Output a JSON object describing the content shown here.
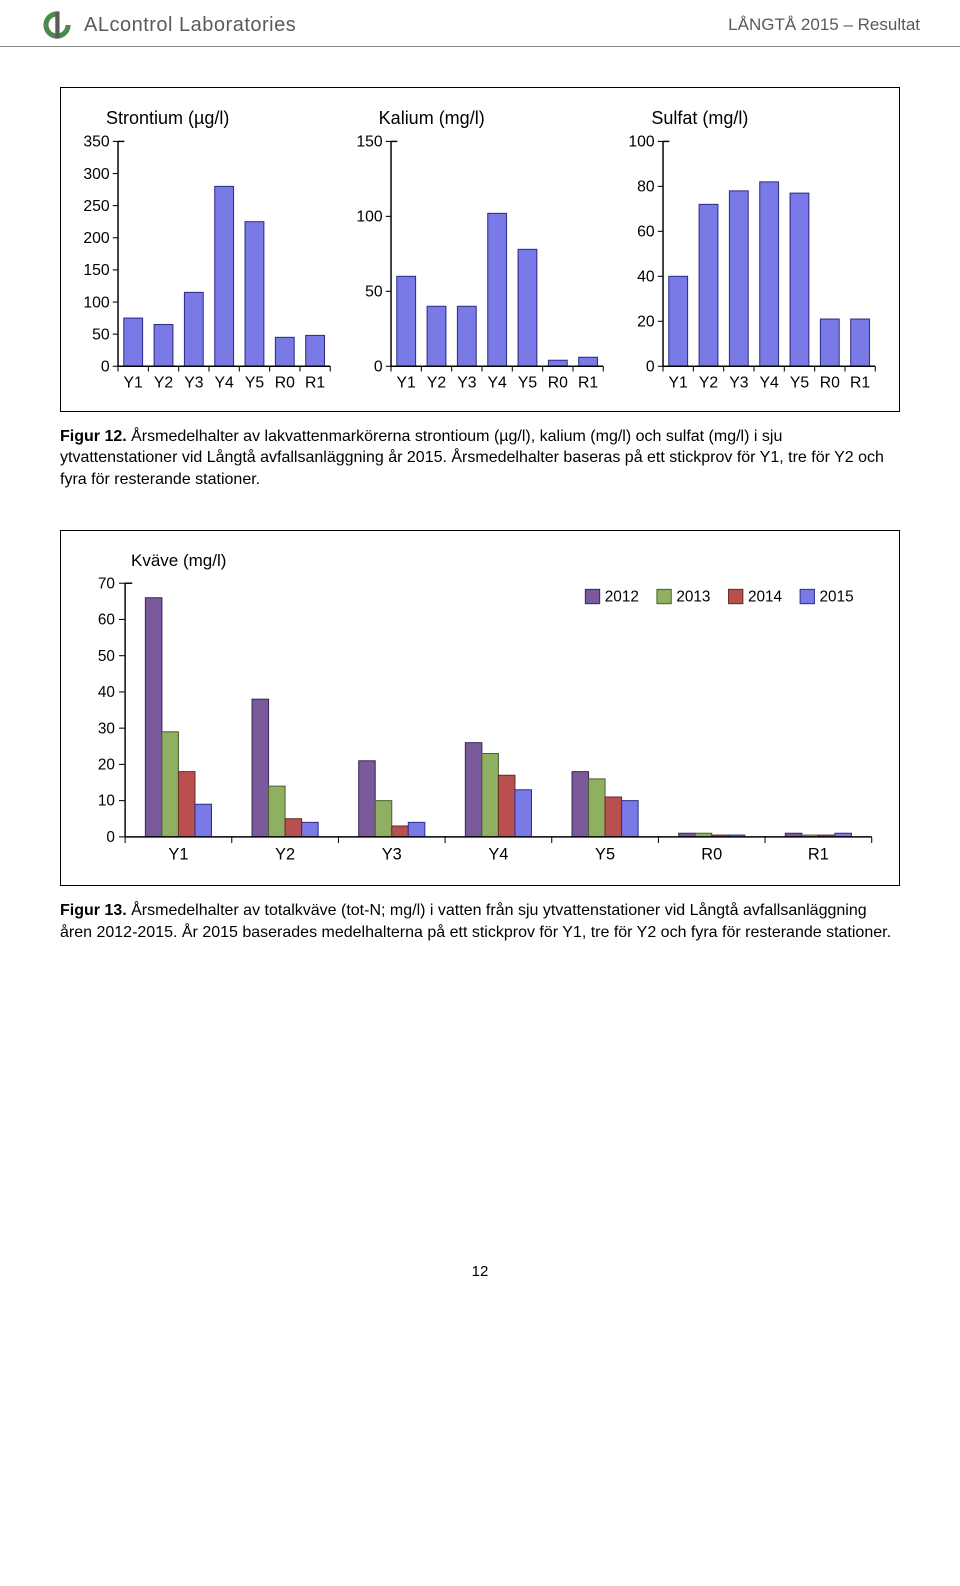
{
  "header": {
    "company": "ALcontrol Laboratories",
    "doc_title": "LÅNGTÅ 2015 – Resultat"
  },
  "logo": {
    "outer_color": "#4a8a4a",
    "inner_color": "#5a5a5a"
  },
  "mini_charts": {
    "categories": [
      "Y1",
      "Y2",
      "Y3",
      "Y4",
      "Y5",
      "R0",
      "R1"
    ],
    "bar_fill": "#7a7ae6",
    "bar_stroke": "#2e2e8a",
    "axis_color": "#000000",
    "tick_color": "#000000",
    "label_fontsize": 15,
    "tick_fontsize": 15,
    "title_fontsize": 18,
    "charts": [
      {
        "title": "Strontium (µg/l)",
        "ymax": 350,
        "ystep": 50,
        "values": [
          75,
          65,
          115,
          280,
          225,
          45,
          48
        ]
      },
      {
        "title": "Kalium (mg/l)",
        "ymax": 150,
        "ystep": 50,
        "values": [
          60,
          40,
          40,
          102,
          78,
          4,
          6
        ]
      },
      {
        "title": "Sulfat (mg/l)",
        "ymax": 100,
        "ystep": 20,
        "values": [
          40,
          72,
          78,
          82,
          77,
          21,
          21
        ]
      }
    ]
  },
  "caption1": {
    "label": "Figur 12.",
    "text": " Årsmedelhalter av lakvattenmarkörerna strontioum (µg/l), kalium (mg/l) och sulfat (mg/l) i sju ytvattenstationer vid Långtå avfallsanläggning år 2015. Årsmedelhalter baseras på ett stickprov för Y1, tre för Y2 och fyra för resterande stationer."
  },
  "grouped_chart": {
    "title": "Kväve (mg/l)",
    "ymax": 70,
    "ystep": 10,
    "categories": [
      "Y1",
      "Y2",
      "Y3",
      "Y4",
      "Y5",
      "R0",
      "R1"
    ],
    "series": [
      {
        "name": "2012",
        "color": "#7a5a9a",
        "stroke": "#3a2a5a",
        "values": [
          66,
          38,
          21,
          26,
          18,
          1,
          1
        ]
      },
      {
        "name": "2013",
        "color": "#8fb060",
        "stroke": "#4a6030",
        "values": [
          29,
          14,
          10,
          23,
          16,
          1,
          0.5
        ]
      },
      {
        "name": "2014",
        "color": "#b85050",
        "stroke": "#6a2a2a",
        "values": [
          18,
          5,
          3,
          17,
          11,
          0.5,
          0.5
        ]
      },
      {
        "name": "2015",
        "color": "#7a7ae6",
        "stroke": "#2e2e8a",
        "values": [
          9,
          4,
          4,
          13,
          10,
          0.5,
          1
        ]
      }
    ],
    "legend_labels": [
      "2012",
      "2013",
      "2014",
      "2015"
    ],
    "axis_color": "#000000",
    "label_fontsize": 16,
    "tick_fontsize": 15
  },
  "caption2": {
    "label": "Figur 13.",
    "text": " Årsmedelhalter av totalkväve (tot-N; mg/l) i vatten från sju ytvattenstationer vid Långtå avfallsanläggning åren 2012-2015. År 2015 baserades medelhalterna på ett stickprov för Y1, tre för Y2 och fyra för resterande stationer."
  },
  "page_number": "12"
}
